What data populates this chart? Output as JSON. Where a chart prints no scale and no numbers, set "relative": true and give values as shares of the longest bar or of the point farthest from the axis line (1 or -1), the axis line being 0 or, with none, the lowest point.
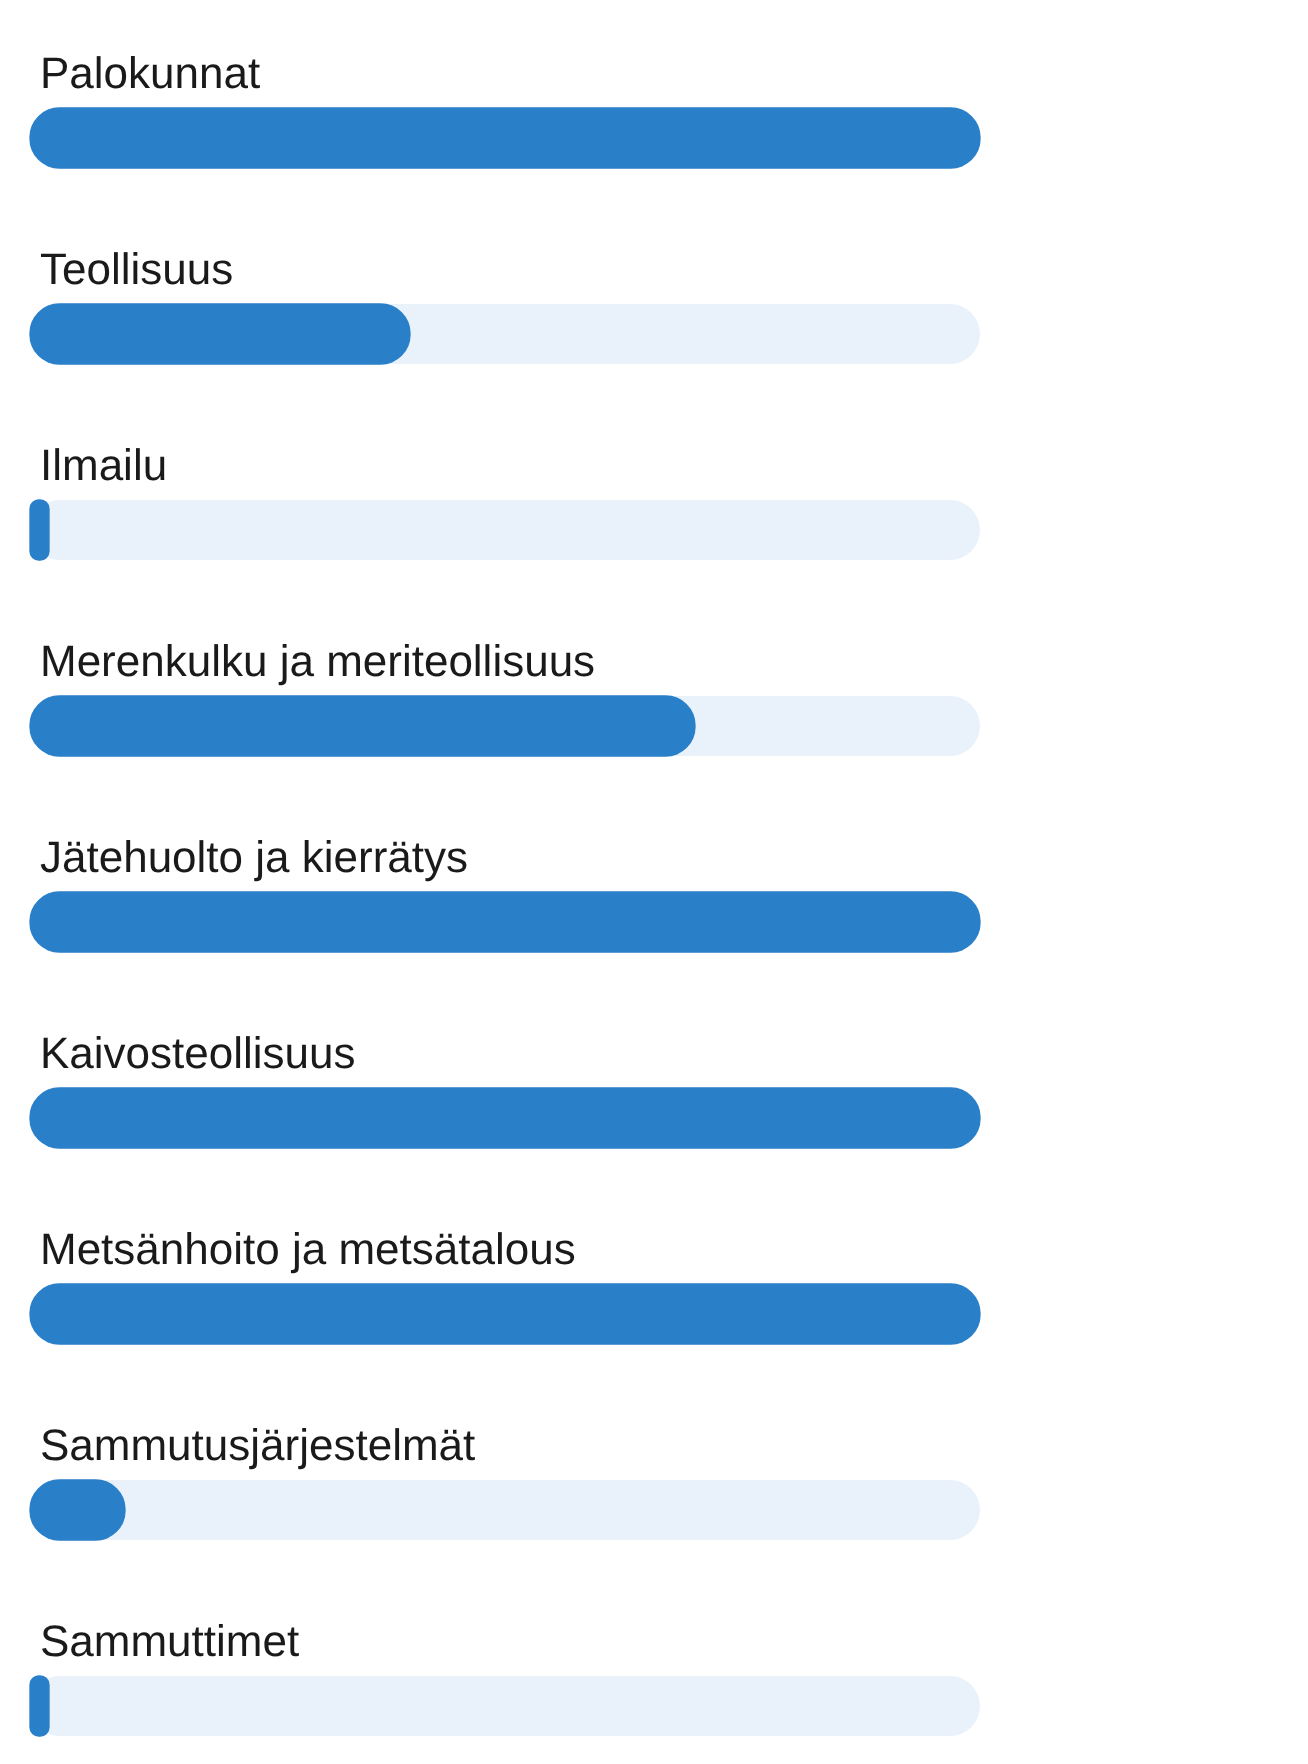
{
  "chart_data": {
    "type": "bar",
    "orientation": "horizontal",
    "relative": true,
    "categories": [
      "Palokunnat",
      "Teollisuus",
      "Ilmailu",
      "Merenkulku ja meriteollisuus",
      "Jätehuolto ja kierrätys",
      "Kaivosteollisuus",
      "Metsänhoito ja metsätalous",
      "Sammutusjärjestelmät",
      "Sammuttimet"
    ],
    "values": [
      1,
      0.4,
      0.02,
      0.7,
      1,
      1,
      1,
      0.1,
      0.02
    ],
    "color": "#2a7fc9"
  }
}
